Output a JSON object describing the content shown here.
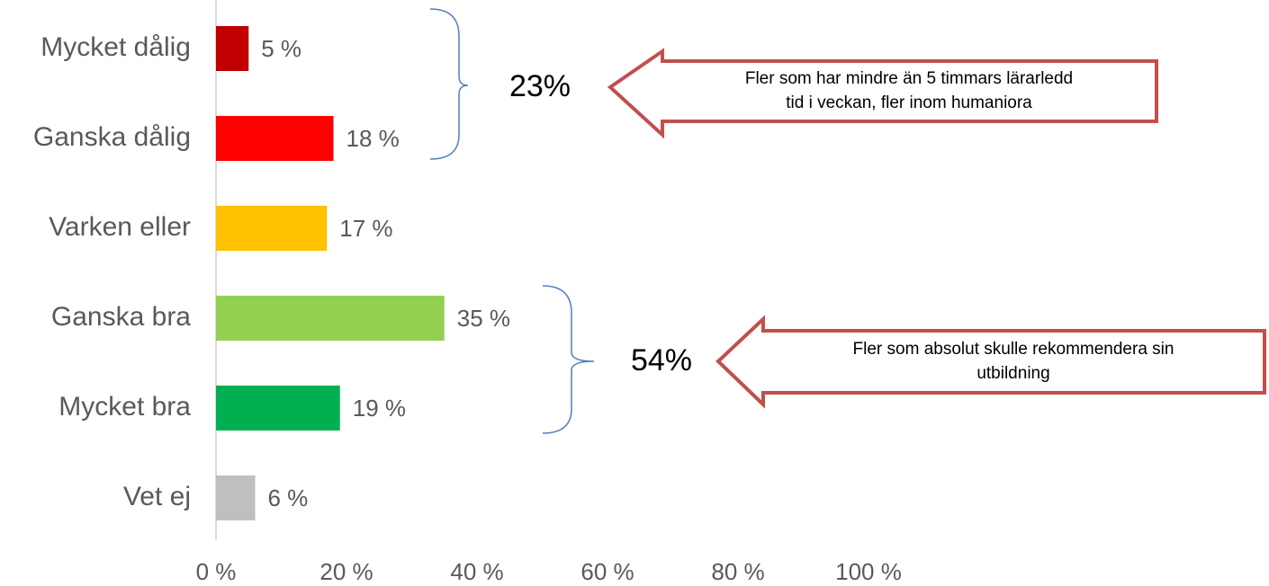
{
  "chart_data": {
    "type": "barh",
    "categories": [
      "Mycket dålig",
      "Ganska dålig",
      "Varken eller",
      "Ganska bra",
      "Mycket bra",
      "Vet ej"
    ],
    "values": [
      5,
      18,
      17,
      35,
      19,
      6
    ],
    "value_labels": [
      "5 %",
      "18 %",
      "17 %",
      "35 %",
      "19 %",
      "6 %"
    ],
    "colors": [
      "#c00000",
      "#ff0000",
      "#ffc000",
      "#92d050",
      "#00b050",
      "#bfbfbf"
    ],
    "xlim": [
      0,
      100
    ],
    "xticks": [
      {
        "value": 0,
        "label": "0 %"
      },
      {
        "value": 20,
        "label": "20 %"
      },
      {
        "value": 40,
        "label": "40 %"
      },
      {
        "value": 60,
        "label": "60 %"
      },
      {
        "value": 80,
        "label": "80 %"
      },
      {
        "value": 100,
        "label": "100 %"
      }
    ],
    "annotations": [
      {
        "label": "23%",
        "lines": [
          "Fler som har mindre än 5 timmars lärarledd",
          "tid i veckan, fler inom humaniora"
        ]
      },
      {
        "label": "54%",
        "lines": [
          "Fler som absolut skulle rekommendera sin",
          "utbildning"
        ]
      }
    ]
  }
}
